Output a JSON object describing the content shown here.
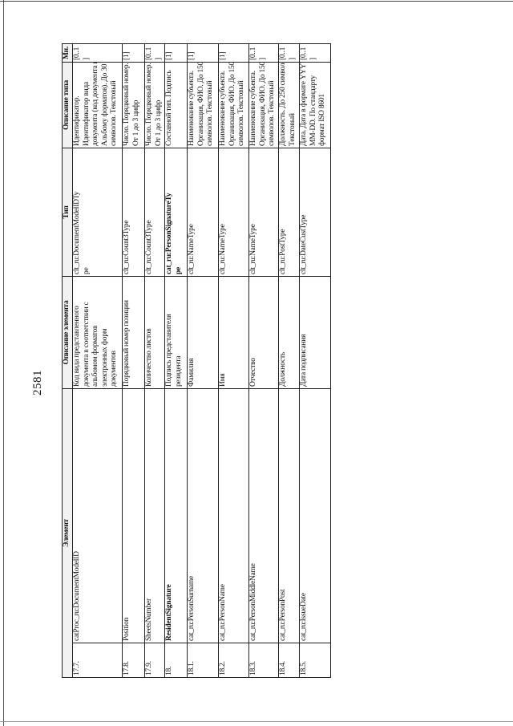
{
  "page_number": "2581",
  "header": {
    "element": "Элемент",
    "element_description": "Описание элемента",
    "type": "Тип",
    "type_description": "Описание типа",
    "multiplicity": "Мн."
  },
  "rows": [
    {
      "num": "17.7.",
      "element": "catProc_ru:DocumentModelID",
      "description": "Код вида представленного\nдокумента в соответствии с\nальбомом форматов\nэлектронных форм\nдокументов",
      "type": "clt_ru:DocumentModelIDTy\npe",
      "type_description": "Идентификатор.\nИдентификатор вида\nдокумента (код документа по\nАльбому форматов). До 30\nсимволов. Текстовый",
      "multiplicity": "[0..1\n]",
      "bold": false
    },
    {
      "num": "17.8.",
      "element": "Position",
      "description": "Порядковый номер позиции",
      "type": "clt_ru:Count3Type",
      "type_description": "Число. Порядковый номер.\nОт 1 до 3 цифр",
      "multiplicity": "[1]",
      "bold": false
    },
    {
      "num": "17.9.",
      "element": "SheetsNumber",
      "description": "Количество листов",
      "type": "clt_ru:Count3Type",
      "type_description": "Число. Порядковый номер.\nОт 1 до 3 цифр",
      "multiplicity": "[0..1\n]",
      "bold": false
    },
    {
      "num": "18.",
      "element": "ResidentSignature",
      "description": "Подпись представителя\nрезидента",
      "type": "cat_ru:PersonSignatureTy\npe",
      "type_description": "Составной тип. Подпись",
      "multiplicity": "[1]",
      "bold": true
    },
    {
      "num": "18.1.",
      "element": "cat_ru:PersonSurname",
      "description": "Фамилия",
      "type": "clt_ru:NameType",
      "type_description": "Наименование субъекта.\nОрганизация, ФИО. До 150\nсимволов. Текстовый",
      "multiplicity": "[1]",
      "bold": false
    },
    {
      "num": "18.2.",
      "element": "cat_ru:PersonName",
      "description": "Имя",
      "type": "clt_ru:NameType",
      "type_description": "Наименование субъекта.\nОрганизация, ФИО. До 150\nсимволов. Текстовый",
      "multiplicity": "[1]",
      "bold": false
    },
    {
      "num": "18.3.",
      "element": "cat_ru:PersonMiddleName",
      "description": "Отчество",
      "type": "clt_ru:NameType",
      "type_description": "Наименование субъекта.\nОрганизация, ФИО. До 150\nсимволов. Текстовый",
      "multiplicity": "[0..1\n]",
      "bold": false
    },
    {
      "num": "18.4.",
      "element": "cat_ru:PersonPost",
      "description": "Должность",
      "type": "clt_ru:PostType",
      "type_description": "Должность. До 250 символов.\nТекстовый",
      "multiplicity": "[0..1\n]",
      "bold": false
    },
    {
      "num": "18.5.",
      "element": "cat_ru:IssueDate",
      "description": "Дата подписания",
      "type": "clt_ru:DateCustType",
      "type_description": "Дата. Дата в формате YYYY-\nMM-DD. По стандарту\nформат ISO 8601",
      "multiplicity": "[0..1\n]",
      "bold": false
    }
  ]
}
